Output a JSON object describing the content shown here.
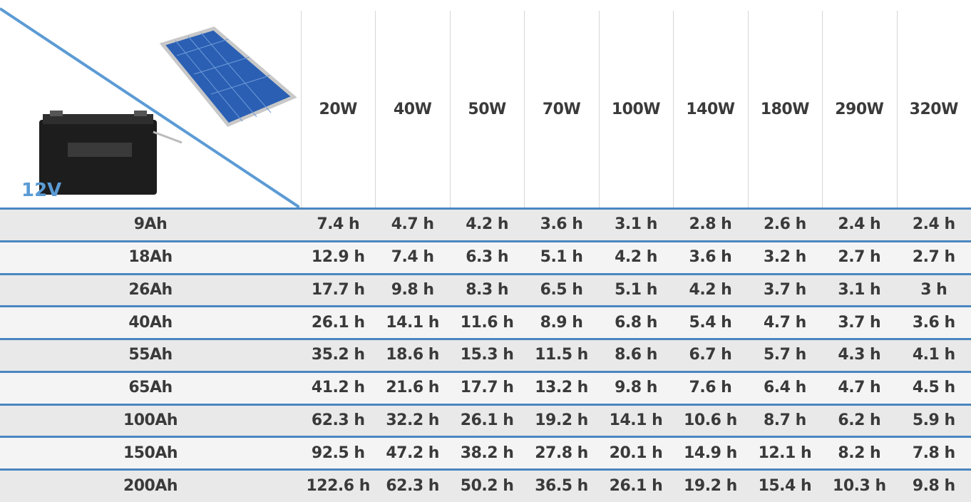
{
  "corner_label": "12V",
  "table": {
    "columns": [
      "20W",
      "40W",
      "50W",
      "70W",
      "100W",
      "140W",
      "180W",
      "290W",
      "320W"
    ],
    "rows": [
      {
        "label": "9Ah",
        "cells": [
          "7.4 h",
          "4.7 h",
          "4.2 h",
          "3.6 h",
          "3.1 h",
          "2.8 h",
          "2.6 h",
          "2.4 h",
          "2.4 h"
        ]
      },
      {
        "label": "18Ah",
        "cells": [
          "12.9 h",
          "7.4 h",
          "6.3 h",
          "5.1 h",
          "4.2 h",
          "3.6 h",
          "3.2 h",
          "2.7 h",
          "2.7 h"
        ]
      },
      {
        "label": "26Ah",
        "cells": [
          "17.7 h",
          "9.8 h",
          "8.3 h",
          "6.5 h",
          "5.1 h",
          "4.2 h",
          "3.7 h",
          "3.1 h",
          "3 h"
        ]
      },
      {
        "label": "40Ah",
        "cells": [
          "26.1 h",
          "14.1 h",
          "11.6 h",
          "8.9 h",
          "6.8 h",
          "5.4 h",
          "4.7 h",
          "3.7 h",
          "3.6 h"
        ]
      },
      {
        "label": "55Ah",
        "cells": [
          "35.2 h",
          "18.6 h",
          "15.3 h",
          "11.5 h",
          "8.6 h",
          "6.7 h",
          "5.7 h",
          "4.3 h",
          "4.1 h"
        ]
      },
      {
        "label": "65Ah",
        "cells": [
          "41.2 h",
          "21.6 h",
          "17.7 h",
          "13.2 h",
          "9.8 h",
          "7.6 h",
          "6.4 h",
          "4.7 h",
          "4.5 h"
        ]
      },
      {
        "label": "100Ah",
        "cells": [
          "62.3 h",
          "32.2 h",
          "26.1 h",
          "19.2 h",
          "14.1 h",
          "10.6 h",
          "8.7 h",
          "6.2 h",
          "5.9 h"
        ]
      },
      {
        "label": "150Ah",
        "cells": [
          "92.5 h",
          "47.2 h",
          "38.2 h",
          "27.8 h",
          "20.1 h",
          "14.9 h",
          "12.1 h",
          "8.2 h",
          "7.8 h"
        ]
      },
      {
        "label": "200Ah",
        "cells": [
          "122.6 h",
          "62.3 h",
          "50.2 h",
          "36.5 h",
          "26.1 h",
          "19.2 h",
          "15.4 h",
          "10.3 h",
          "9.8 h"
        ]
      }
    ]
  }
}
